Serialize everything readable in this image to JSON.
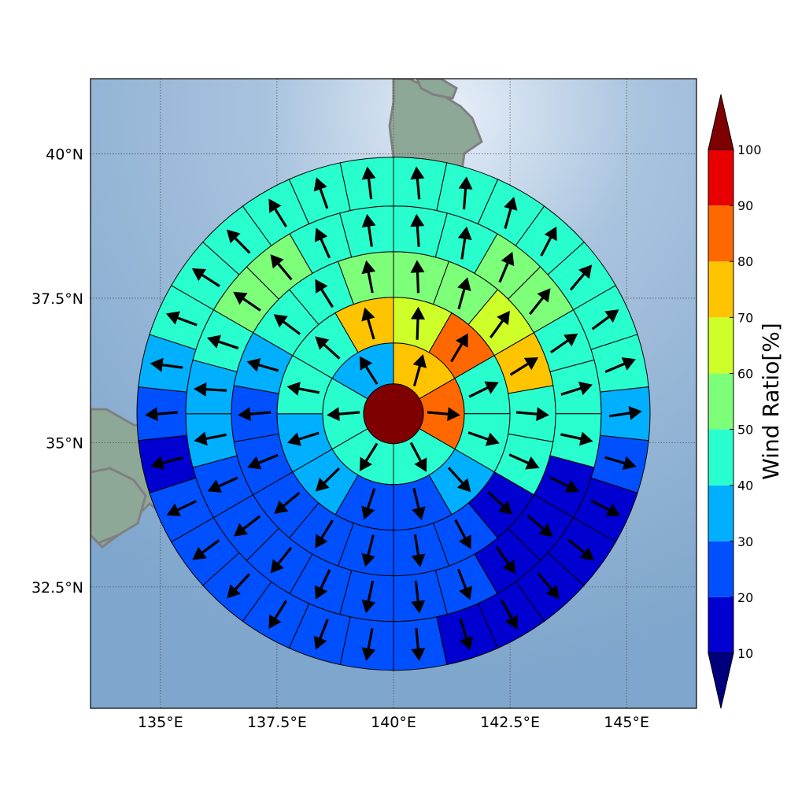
{
  "chart_data": {
    "type": "polar-sector-map",
    "title": "",
    "center": {
      "lon": 140.0,
      "lat": 35.5
    },
    "map_extent": {
      "lon": [
        133.5,
        146.5
      ],
      "lat": [
        30.4,
        41.3
      ]
    },
    "x_ticks": [
      {
        "value": 135.0,
        "label": "135°E"
      },
      {
        "value": 137.5,
        "label": "137.5°E"
      },
      {
        "value": 140.0,
        "label": "140°E"
      },
      {
        "value": 142.5,
        "label": "142.5°E"
      },
      {
        "value": 145.0,
        "label": "145°E"
      }
    ],
    "y_ticks": [
      {
        "value": 40.0,
        "label": "40°N"
      },
      {
        "value": 37.5,
        "label": "37.5°N"
      },
      {
        "value": 35.0,
        "label": "35°N"
      },
      {
        "value": 32.5,
        "label": "32.5°N"
      }
    ],
    "grid": true,
    "center_value": 100,
    "rings": [
      {
        "ring": 1,
        "values": [
          75,
          80,
          45,
          45,
          45,
          35
        ]
      },
      {
        "ring": 2,
        "values": [
          65,
          80,
          45,
          45,
          35,
          25,
          25,
          35,
          35,
          45,
          45,
          75
        ]
      },
      {
        "ring": 3,
        "values": [
          55,
          55,
          65,
          75,
          45,
          45,
          15,
          25,
          25,
          25,
          25,
          25,
          25,
          25,
          35,
          45,
          45,
          55
        ]
      },
      {
        "ring": 4,
        "values": [
          45,
          45,
          55,
          55,
          45,
          45,
          45,
          15,
          15,
          15,
          25,
          25,
          25,
          25,
          25,
          25,
          25,
          35,
          35,
          45,
          55,
          55,
          45,
          45
        ]
      },
      {
        "ring": 5,
        "values": [
          45,
          45,
          45,
          45,
          45,
          45,
          45,
          35,
          25,
          15,
          15,
          15,
          15,
          15,
          25,
          25,
          25,
          25,
          25,
          25,
          25,
          15,
          25,
          35,
          45,
          45,
          45,
          45,
          45,
          45
        ]
      }
    ],
    "colorbar": {
      "label": "Wind Ratio[%]",
      "levels": [
        10,
        20,
        30,
        40,
        50,
        60,
        70,
        80,
        90,
        100
      ],
      "colors": [
        "#0000d0",
        "#0050ff",
        "#00b0ff",
        "#29ffce",
        "#7dff7a",
        "#ceff29",
        "#ffc400",
        "#ff6800",
        "#e80000"
      ],
      "under_color": "#00007f",
      "over_color": "#7f0000",
      "extend": "both"
    },
    "sector_color_note": "",
    "features": {
      "coastline_color": "#808080",
      "ocean_color": "#8fb3d4",
      "land_color": "#8fa89a"
    }
  }
}
